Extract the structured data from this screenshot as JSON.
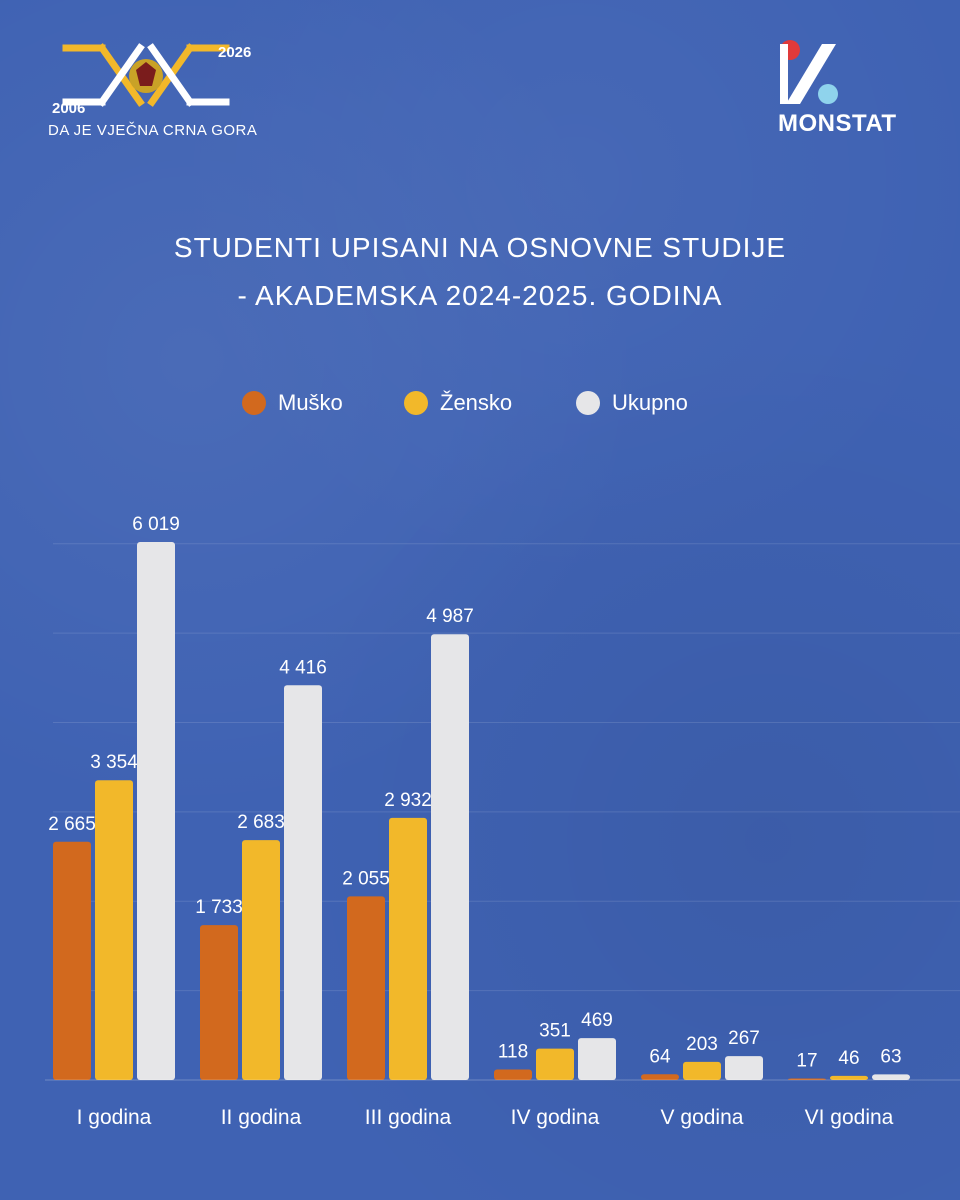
{
  "header": {
    "anniversary": {
      "year_start": "2006",
      "year_end": "2026",
      "motto": "DA JE VJEČNA CRNA GORA"
    },
    "brand": {
      "name": "MONSTAT"
    }
  },
  "colors": {
    "background": "#3f62b3",
    "musko": "#d2691e",
    "zensko": "#f2b82a",
    "ukupno": "#e6e6e8",
    "gold": "#f2b82a",
    "red": "#e03a3a",
    "cyan": "#8fd3ec"
  },
  "chart_data": {
    "type": "bar",
    "title": "STUDENTI UPISANI NA OSNOVNE STUDIJE",
    "subtitle": "- AKADEMSKA 2024-2025. GODINA",
    "categories": [
      "I godina",
      "II godina",
      "III godina",
      "IV godina",
      "V godina",
      "VI godina"
    ],
    "series": [
      {
        "name": "Muško",
        "values": [
          2665,
          1733,
          2055,
          118,
          64,
          17
        ],
        "labels": [
          "2 665",
          "1 733",
          "2 055",
          "118",
          "64",
          "17"
        ]
      },
      {
        "name": "Žensko",
        "values": [
          3354,
          2683,
          2932,
          351,
          203,
          46
        ],
        "labels": [
          "3 354",
          "2 683",
          "2 932",
          "351",
          "203",
          "46"
        ]
      },
      {
        "name": "Ukupno",
        "values": [
          6019,
          4416,
          4987,
          469,
          267,
          63
        ],
        "labels": [
          "6 019",
          "4 416",
          "4 987",
          "469",
          "267",
          "63"
        ]
      }
    ],
    "ylim": [
      0,
      6000
    ],
    "grid": true,
    "legend": "top-center"
  }
}
